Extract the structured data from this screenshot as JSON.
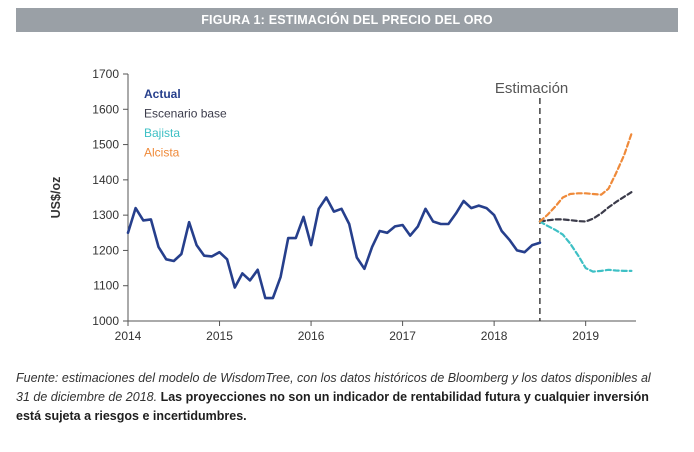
{
  "figure": {
    "title": "FIGURA 1: ESTIMACIÓN DEL PRECIO DEL ORO"
  },
  "source": {
    "italic": "Fuente: estimaciones del modelo de WisdomTree, con los datos históricos de Bloomberg y los datos disponibles al 31 de diciembre de 2018.",
    "bold": "Las proyecciones no son un indicador de rentabilidad futura y cualquier inversión está sujeta a riesgos e incertidumbres."
  },
  "chart_data": {
    "type": "line",
    "ylabel": "US$/oz",
    "xlabel": "",
    "xlim": [
      2014.0,
      2019.55
    ],
    "ylim": [
      1000,
      1700
    ],
    "x_ticks": [
      "2014",
      "2015",
      "2016",
      "2017",
      "2018",
      "2019"
    ],
    "y_ticks": [
      "1000",
      "1100",
      "1200",
      "1300",
      "1400",
      "1500",
      "1600",
      "1700"
    ],
    "grid": false,
    "legend_position": "top-left",
    "divider": {
      "x": 2018.5,
      "label": "Estimación"
    },
    "series": [
      {
        "name": "Actual",
        "color": "#263f8c",
        "style": "solid",
        "x": [
          2014.0,
          2014.083,
          2014.167,
          2014.25,
          2014.333,
          2014.417,
          2014.5,
          2014.583,
          2014.667,
          2014.75,
          2014.833,
          2014.917,
          2015.0,
          2015.083,
          2015.167,
          2015.25,
          2015.333,
          2015.417,
          2015.5,
          2015.583,
          2015.667,
          2015.75,
          2015.833,
          2015.917,
          2016.0,
          2016.083,
          2016.167,
          2016.25,
          2016.333,
          2016.417,
          2016.5,
          2016.583,
          2016.667,
          2016.75,
          2016.833,
          2016.917,
          2017.0,
          2017.083,
          2017.167,
          2017.25,
          2017.333,
          2017.417,
          2017.5,
          2017.583,
          2017.667,
          2017.75,
          2017.833,
          2017.917,
          2018.0,
          2018.083,
          2018.167,
          2018.25,
          2018.333,
          2018.417,
          2018.5
        ],
        "values": [
          1250,
          1320,
          1285,
          1288,
          1210,
          1175,
          1170,
          1190,
          1280,
          1215,
          1185,
          1183,
          1195,
          1175,
          1095,
          1135,
          1115,
          1145,
          1065,
          1065,
          1125,
          1235,
          1235,
          1295,
          1215,
          1318,
          1350,
          1310,
          1318,
          1275,
          1180,
          1148,
          1210,
          1255,
          1250,
          1268,
          1272,
          1242,
          1268,
          1318,
          1282,
          1275,
          1275,
          1305,
          1340,
          1320,
          1327,
          1320,
          1300,
          1255,
          1230,
          1200,
          1195,
          1215,
          1222
        ]
      },
      {
        "name": "Escenario base",
        "color": "#3b3b4a",
        "style": "dashed",
        "x": [
          2018.5,
          2018.58,
          2018.67,
          2018.75,
          2018.83,
          2018.92,
          2019.0,
          2019.08,
          2019.17,
          2019.25,
          2019.33,
          2019.42,
          2019.5
        ],
        "values": [
          1282,
          1285,
          1288,
          1288,
          1286,
          1283,
          1282,
          1290,
          1305,
          1322,
          1337,
          1352,
          1365
        ]
      },
      {
        "name": "Bajista",
        "color": "#3ec0c5",
        "style": "dashed",
        "x": [
          2018.5,
          2018.58,
          2018.67,
          2018.75,
          2018.83,
          2018.92,
          2019.0,
          2019.08,
          2019.17,
          2019.25,
          2019.33,
          2019.42,
          2019.5
        ],
        "values": [
          1282,
          1270,
          1258,
          1245,
          1220,
          1185,
          1150,
          1140,
          1142,
          1145,
          1143,
          1142,
          1142
        ]
      },
      {
        "name": "Alcista",
        "color": "#ef8a3a",
        "style": "dashed",
        "x": [
          2018.5,
          2018.58,
          2018.67,
          2018.75,
          2018.83,
          2018.92,
          2019.0,
          2019.08,
          2019.17,
          2019.25,
          2019.33,
          2019.42,
          2019.5
        ],
        "values": [
          1282,
          1300,
          1325,
          1350,
          1360,
          1362,
          1362,
          1360,
          1358,
          1375,
          1418,
          1470,
          1530
        ]
      }
    ]
  }
}
